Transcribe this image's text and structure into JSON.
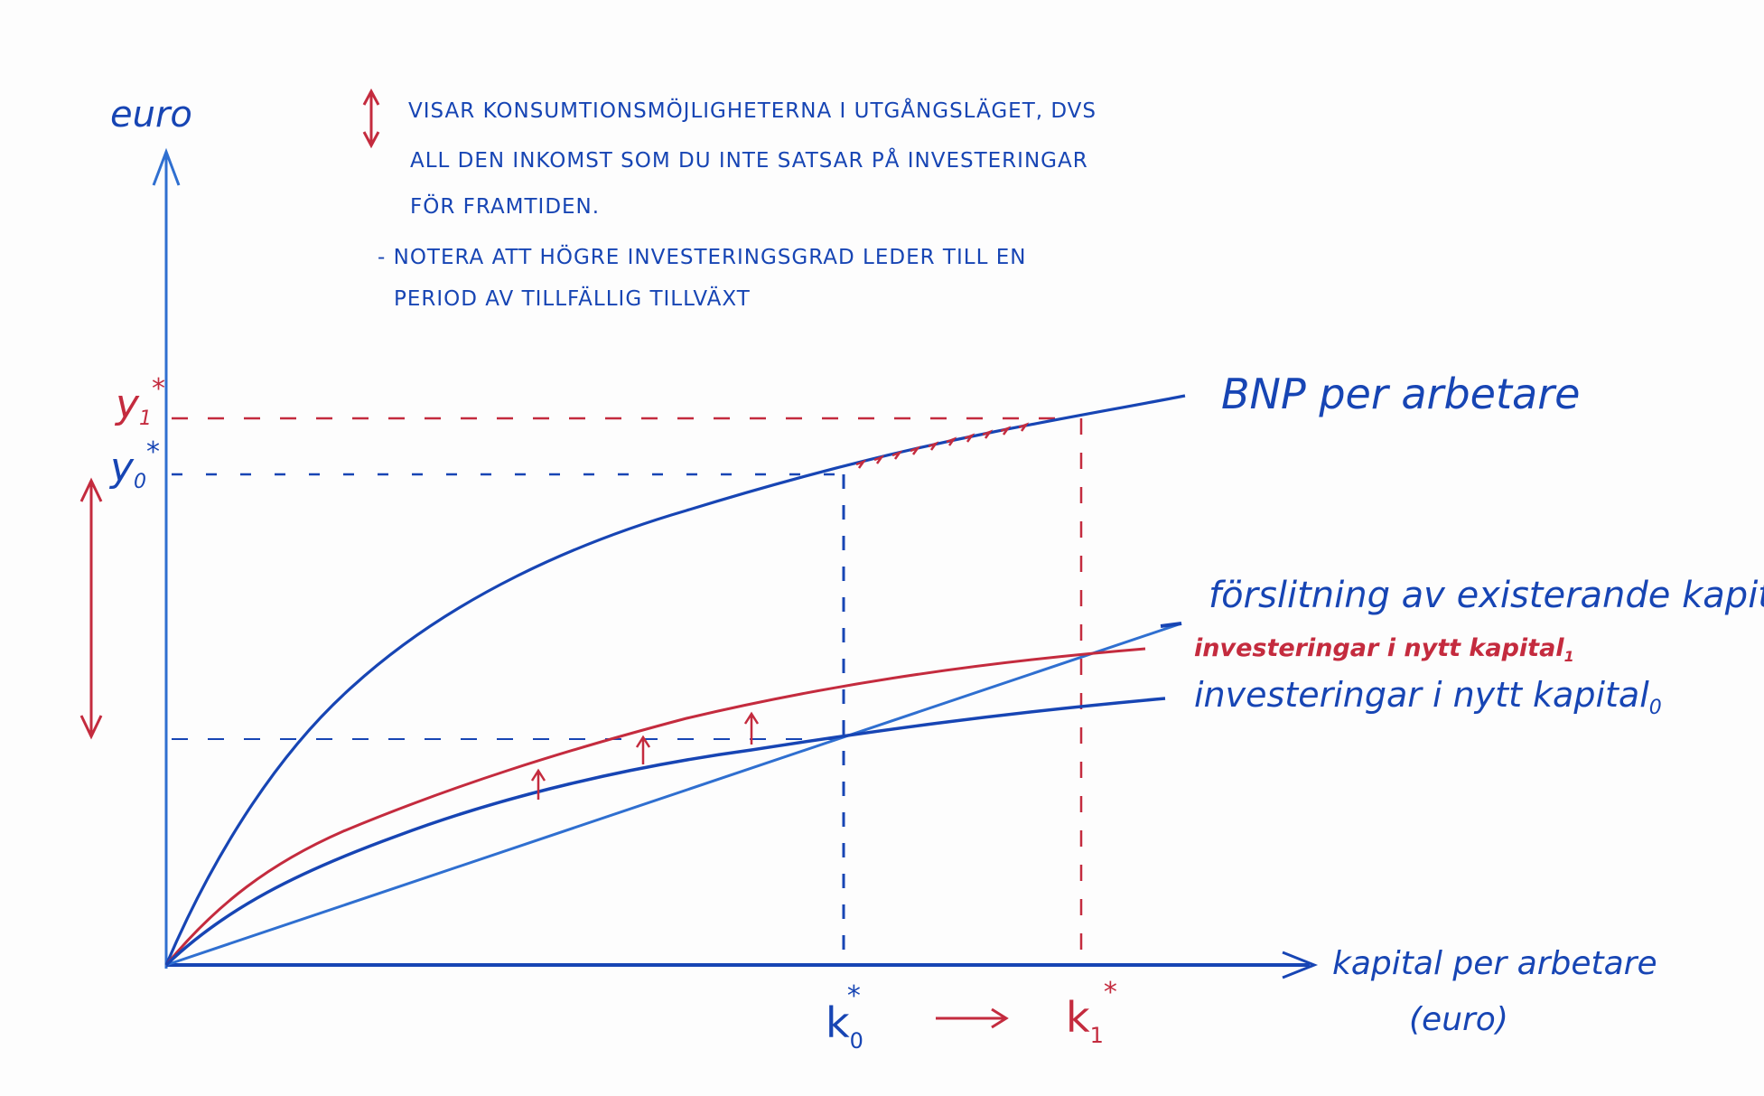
{
  "colors": {
    "blue": "#1745b4",
    "light_blue": "#2f6fd0",
    "red": "#c42b3e",
    "background": "#fdfdfd"
  },
  "notes": {
    "arrow_symbol": "↕",
    "line1": "VISAR KONSUMTIONSMÖJLIGHETERNA I UTGÅNGSLÄGET, DVS",
    "line2": "ALL DEN INKOMST SOM DU INTE SATSAR PÅ INVESTERINGAR",
    "line3": "FÖR FRAMTIDEN.",
    "line4": "- NOTERA ATT HÖGRE INVESTERINGSGRAD LEDER TILL EN",
    "line5": "PERIOD AV TILLFÄLLIG TILLVÄXT"
  },
  "axes": {
    "y_label": "euro",
    "x_label_line1": "kapital per arbetare",
    "x_label_line2": "(euro)",
    "y1_label": "y",
    "y1_sub": "1",
    "y0_label": "y",
    "y0_sub": "0",
    "star": "*",
    "k0_label": "k",
    "k0_sub": "0",
    "k1_label": "k",
    "k1_sub": "1",
    "shift_arrow": "→"
  },
  "curves": {
    "bnp_label": "BNP per arbetare",
    "depreciation_label": "förslitning av existerande kapital",
    "investment1_label": "investeringar i nytt kapital",
    "investment1_sub": "1",
    "investment0_label": "investeringar i nytt kapital",
    "investment0_sub": "0"
  }
}
